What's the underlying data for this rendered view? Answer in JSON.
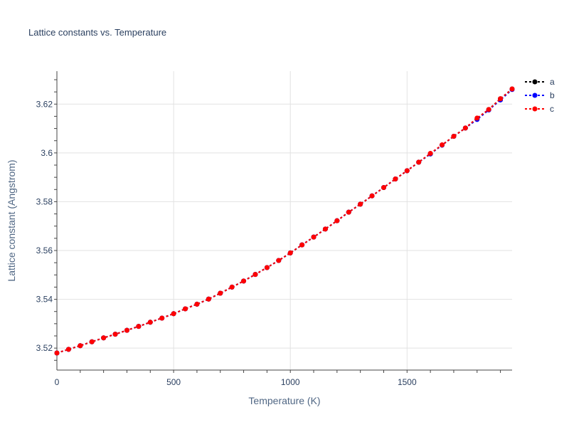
{
  "chart_data": {
    "type": "line",
    "title": "Lattice constants vs. Temperature",
    "xlabel": "Temperature (K)",
    "ylabel": "Lattice constant (Angstrom)",
    "xlim": [
      0,
      1950
    ],
    "ylim": [
      3.511,
      3.6335
    ],
    "x_ticks": [
      0,
      500,
      1000,
      1500
    ],
    "x_tick_labels": [
      "0",
      "500",
      "1000",
      "1500"
    ],
    "y_ticks": [
      3.52,
      3.54,
      3.56,
      3.58,
      3.6,
      3.62
    ],
    "y_tick_labels": [
      "3.52",
      "3.54",
      "3.56",
      "3.58",
      "3.6",
      "3.62"
    ],
    "grid": true,
    "legend_position": "top-right",
    "x": [
      0,
      50,
      100,
      150,
      200,
      250,
      300,
      350,
      400,
      450,
      500,
      550,
      600,
      650,
      700,
      750,
      800,
      850,
      900,
      950,
      1000,
      1050,
      1100,
      1150,
      1200,
      1250,
      1300,
      1350,
      1400,
      1450,
      1500,
      1550,
      1600,
      1650,
      1700,
      1750,
      1800,
      1850,
      1900,
      1950
    ],
    "series": [
      {
        "name": "a",
        "color": "#000000",
        "values": [
          3.518,
          3.5195,
          3.521,
          3.5226,
          3.5242,
          3.5257,
          3.5273,
          3.5289,
          3.5306,
          3.5323,
          3.5341,
          3.5361,
          3.538,
          3.5401,
          3.5425,
          3.545,
          3.5475,
          3.5502,
          3.553,
          3.5559,
          3.559,
          3.5623,
          3.5655,
          3.5688,
          3.5722,
          3.5757,
          3.579,
          3.5824,
          3.5858,
          3.5893,
          3.5927,
          3.5962,
          3.5996,
          3.6032,
          3.6068,
          3.6102,
          3.614,
          3.6178,
          3.6222,
          3.6262
        ]
      },
      {
        "name": "b",
        "color": "#0000ff",
        "values": [
          3.518,
          3.5195,
          3.521,
          3.5226,
          3.5242,
          3.5257,
          3.5273,
          3.5289,
          3.5306,
          3.5323,
          3.5341,
          3.5361,
          3.538,
          3.5401,
          3.5425,
          3.545,
          3.5475,
          3.5502,
          3.553,
          3.5559,
          3.559,
          3.5623,
          3.5655,
          3.5688,
          3.5722,
          3.5757,
          3.579,
          3.5824,
          3.5858,
          3.5893,
          3.5927,
          3.5962,
          3.5996,
          3.6032,
          3.6068,
          3.6102,
          3.6137,
          3.6176,
          3.6217,
          3.626
        ]
      },
      {
        "name": "c",
        "color": "#ff0000",
        "values": [
          3.518,
          3.5195,
          3.521,
          3.5226,
          3.5242,
          3.5257,
          3.5273,
          3.5289,
          3.5306,
          3.5323,
          3.5341,
          3.5361,
          3.538,
          3.5401,
          3.5425,
          3.545,
          3.5475,
          3.5502,
          3.553,
          3.5559,
          3.559,
          3.5623,
          3.5655,
          3.5688,
          3.5722,
          3.5757,
          3.579,
          3.5824,
          3.5858,
          3.5893,
          3.5927,
          3.5962,
          3.5998,
          3.6033,
          3.6068,
          3.6102,
          3.6143,
          3.6178,
          3.6222,
          3.6262
        ]
      }
    ]
  }
}
